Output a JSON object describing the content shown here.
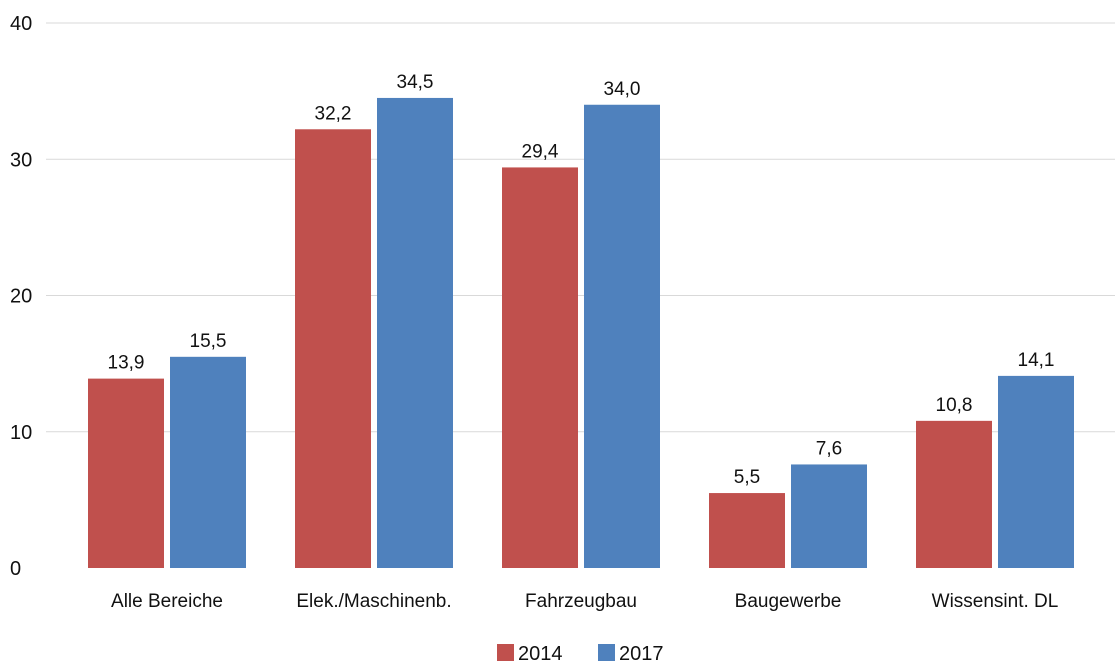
{
  "chart_data": {
    "type": "bar",
    "title": "",
    "xlabel": "",
    "ylabel": "",
    "categories": [
      "Alle Bereiche",
      "Elek./Maschinenb.",
      "Fahrzeugbau",
      "Baugewerbe",
      "Wissensint. DL"
    ],
    "series": [
      {
        "name": "2014",
        "color": "#c0504d",
        "values": [
          13.9,
          32.2,
          29.4,
          5.5,
          10.8
        ],
        "labels": [
          "13,9",
          "32,2",
          "29,4",
          "5,5",
          "10,8"
        ]
      },
      {
        "name": "2017",
        "color": "#4f81bd",
        "values": [
          15.5,
          34.5,
          34.0,
          7.6,
          14.1
        ],
        "labels": [
          "15,5",
          "34,5",
          "34,0",
          "7,6",
          "14,1"
        ]
      }
    ],
    "ylim": [
      0,
      40
    ],
    "yticks": [
      0,
      10,
      20,
      30,
      40
    ],
    "grid": true,
    "legend": "bottom-center"
  }
}
